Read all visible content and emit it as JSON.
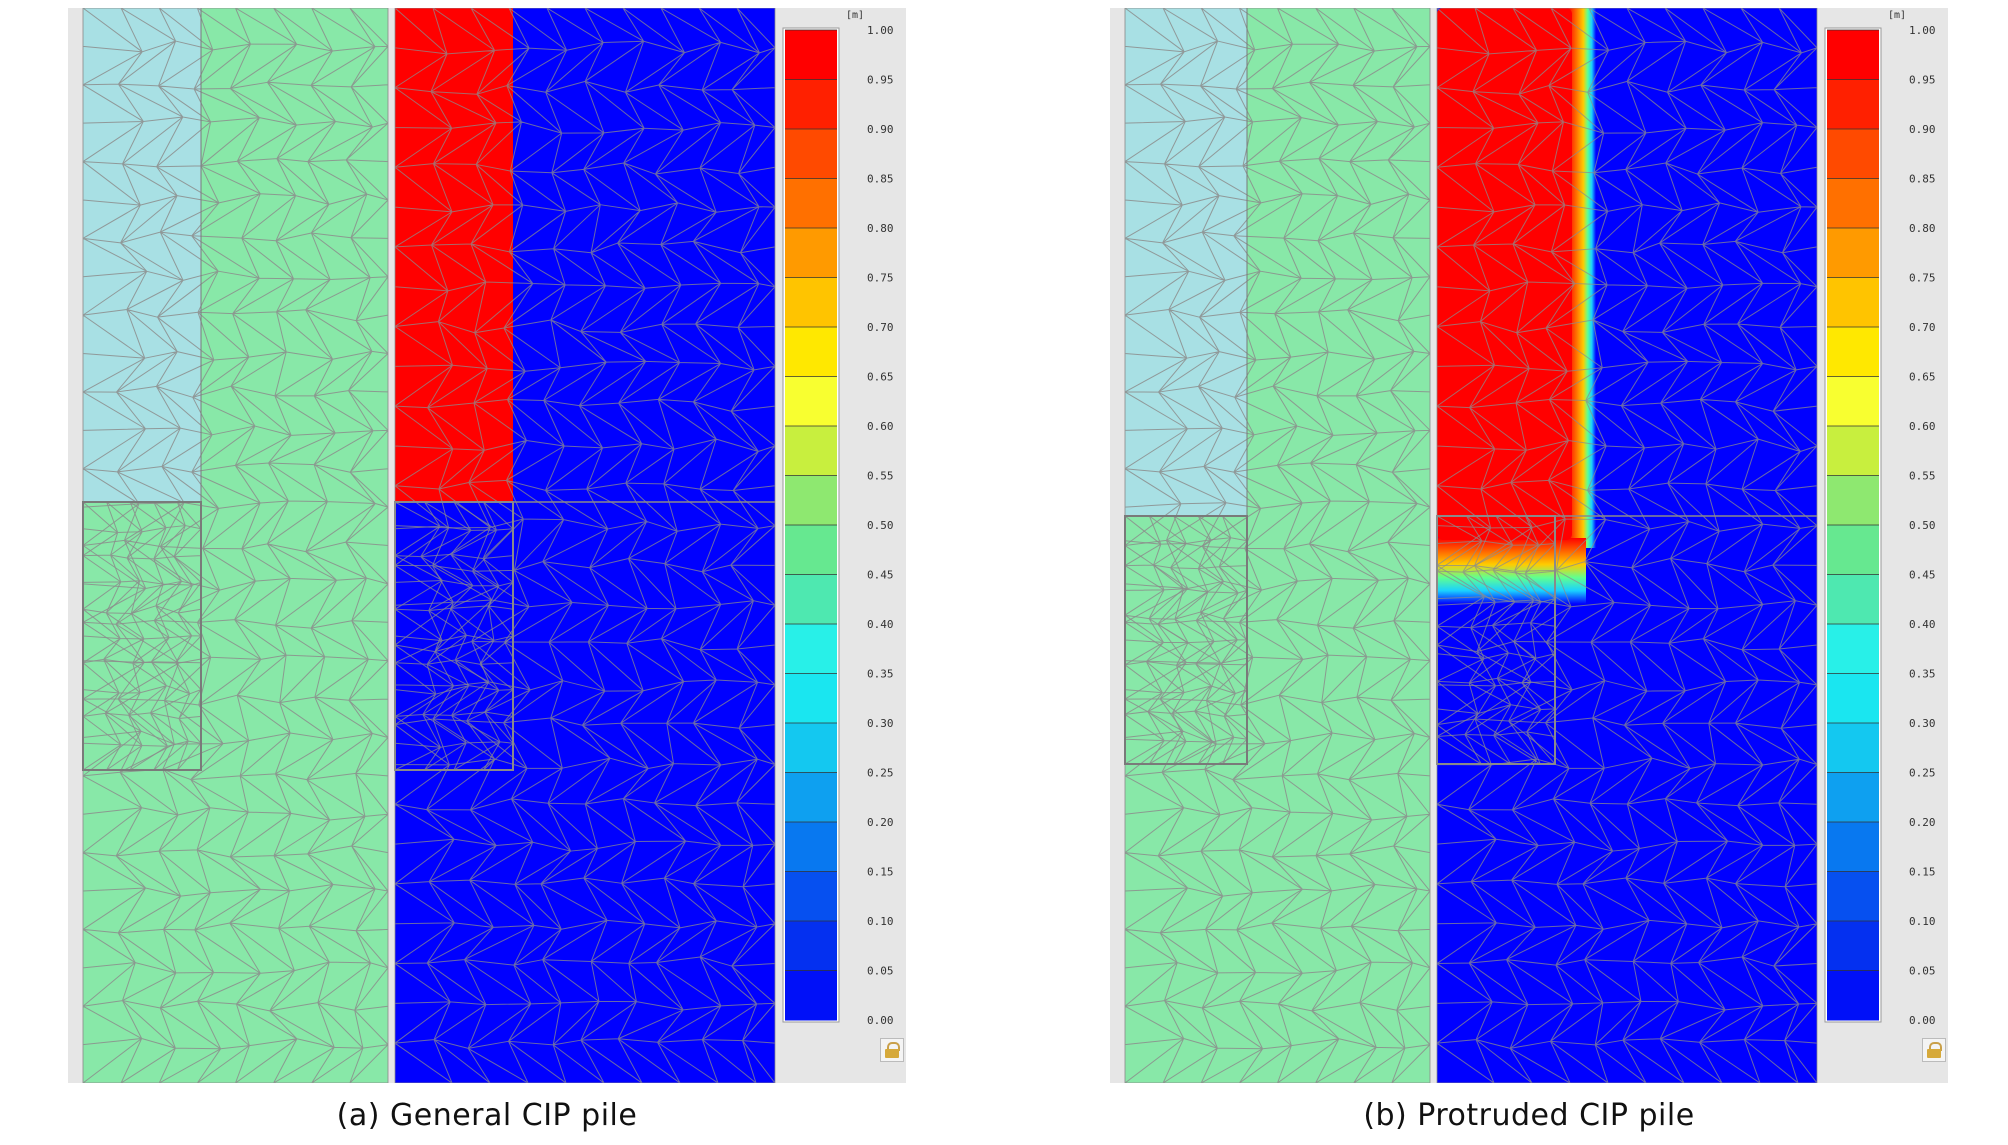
{
  "panels": [
    {
      "id": "a",
      "caption": "(a) General CIP pile",
      "saturated_top": true
    },
    {
      "id": "b",
      "caption": "(b) Protruded CIP pile",
      "saturated_top": true
    }
  ],
  "legend": {
    "unit": "[m]",
    "ticks": [
      "1.00",
      "0.95",
      "0.90",
      "0.85",
      "0.80",
      "0.75",
      "0.70",
      "0.65",
      "0.60",
      "0.55",
      "0.50",
      "0.45",
      "0.40",
      "0.35",
      "0.30",
      "0.25",
      "0.20",
      "0.15",
      "0.10",
      "0.05",
      "0.00"
    ],
    "colors": [
      "#ff0000",
      "#ff2000",
      "#ff4a00",
      "#ff7000",
      "#ff9a00",
      "#ffc400",
      "#ffe800",
      "#f8ff30",
      "#c8ef3e",
      "#8ee870",
      "#66e890",
      "#4ee8b0",
      "#28f0e8",
      "#1ae6f0",
      "#14c8f0",
      "#0ea0f0",
      "#0878f0",
      "#0650f0",
      "#0430f0",
      "#0010f8"
    ]
  },
  "colors": {
    "soil_cyan": "#a8e0e4",
    "soil_green": "#88e8a8",
    "saturated_red": "#ff0000",
    "dry_blue": "#0000ff",
    "mesh": "#8c8c8c"
  },
  "icons": {
    "lock": "lock-icon"
  }
}
